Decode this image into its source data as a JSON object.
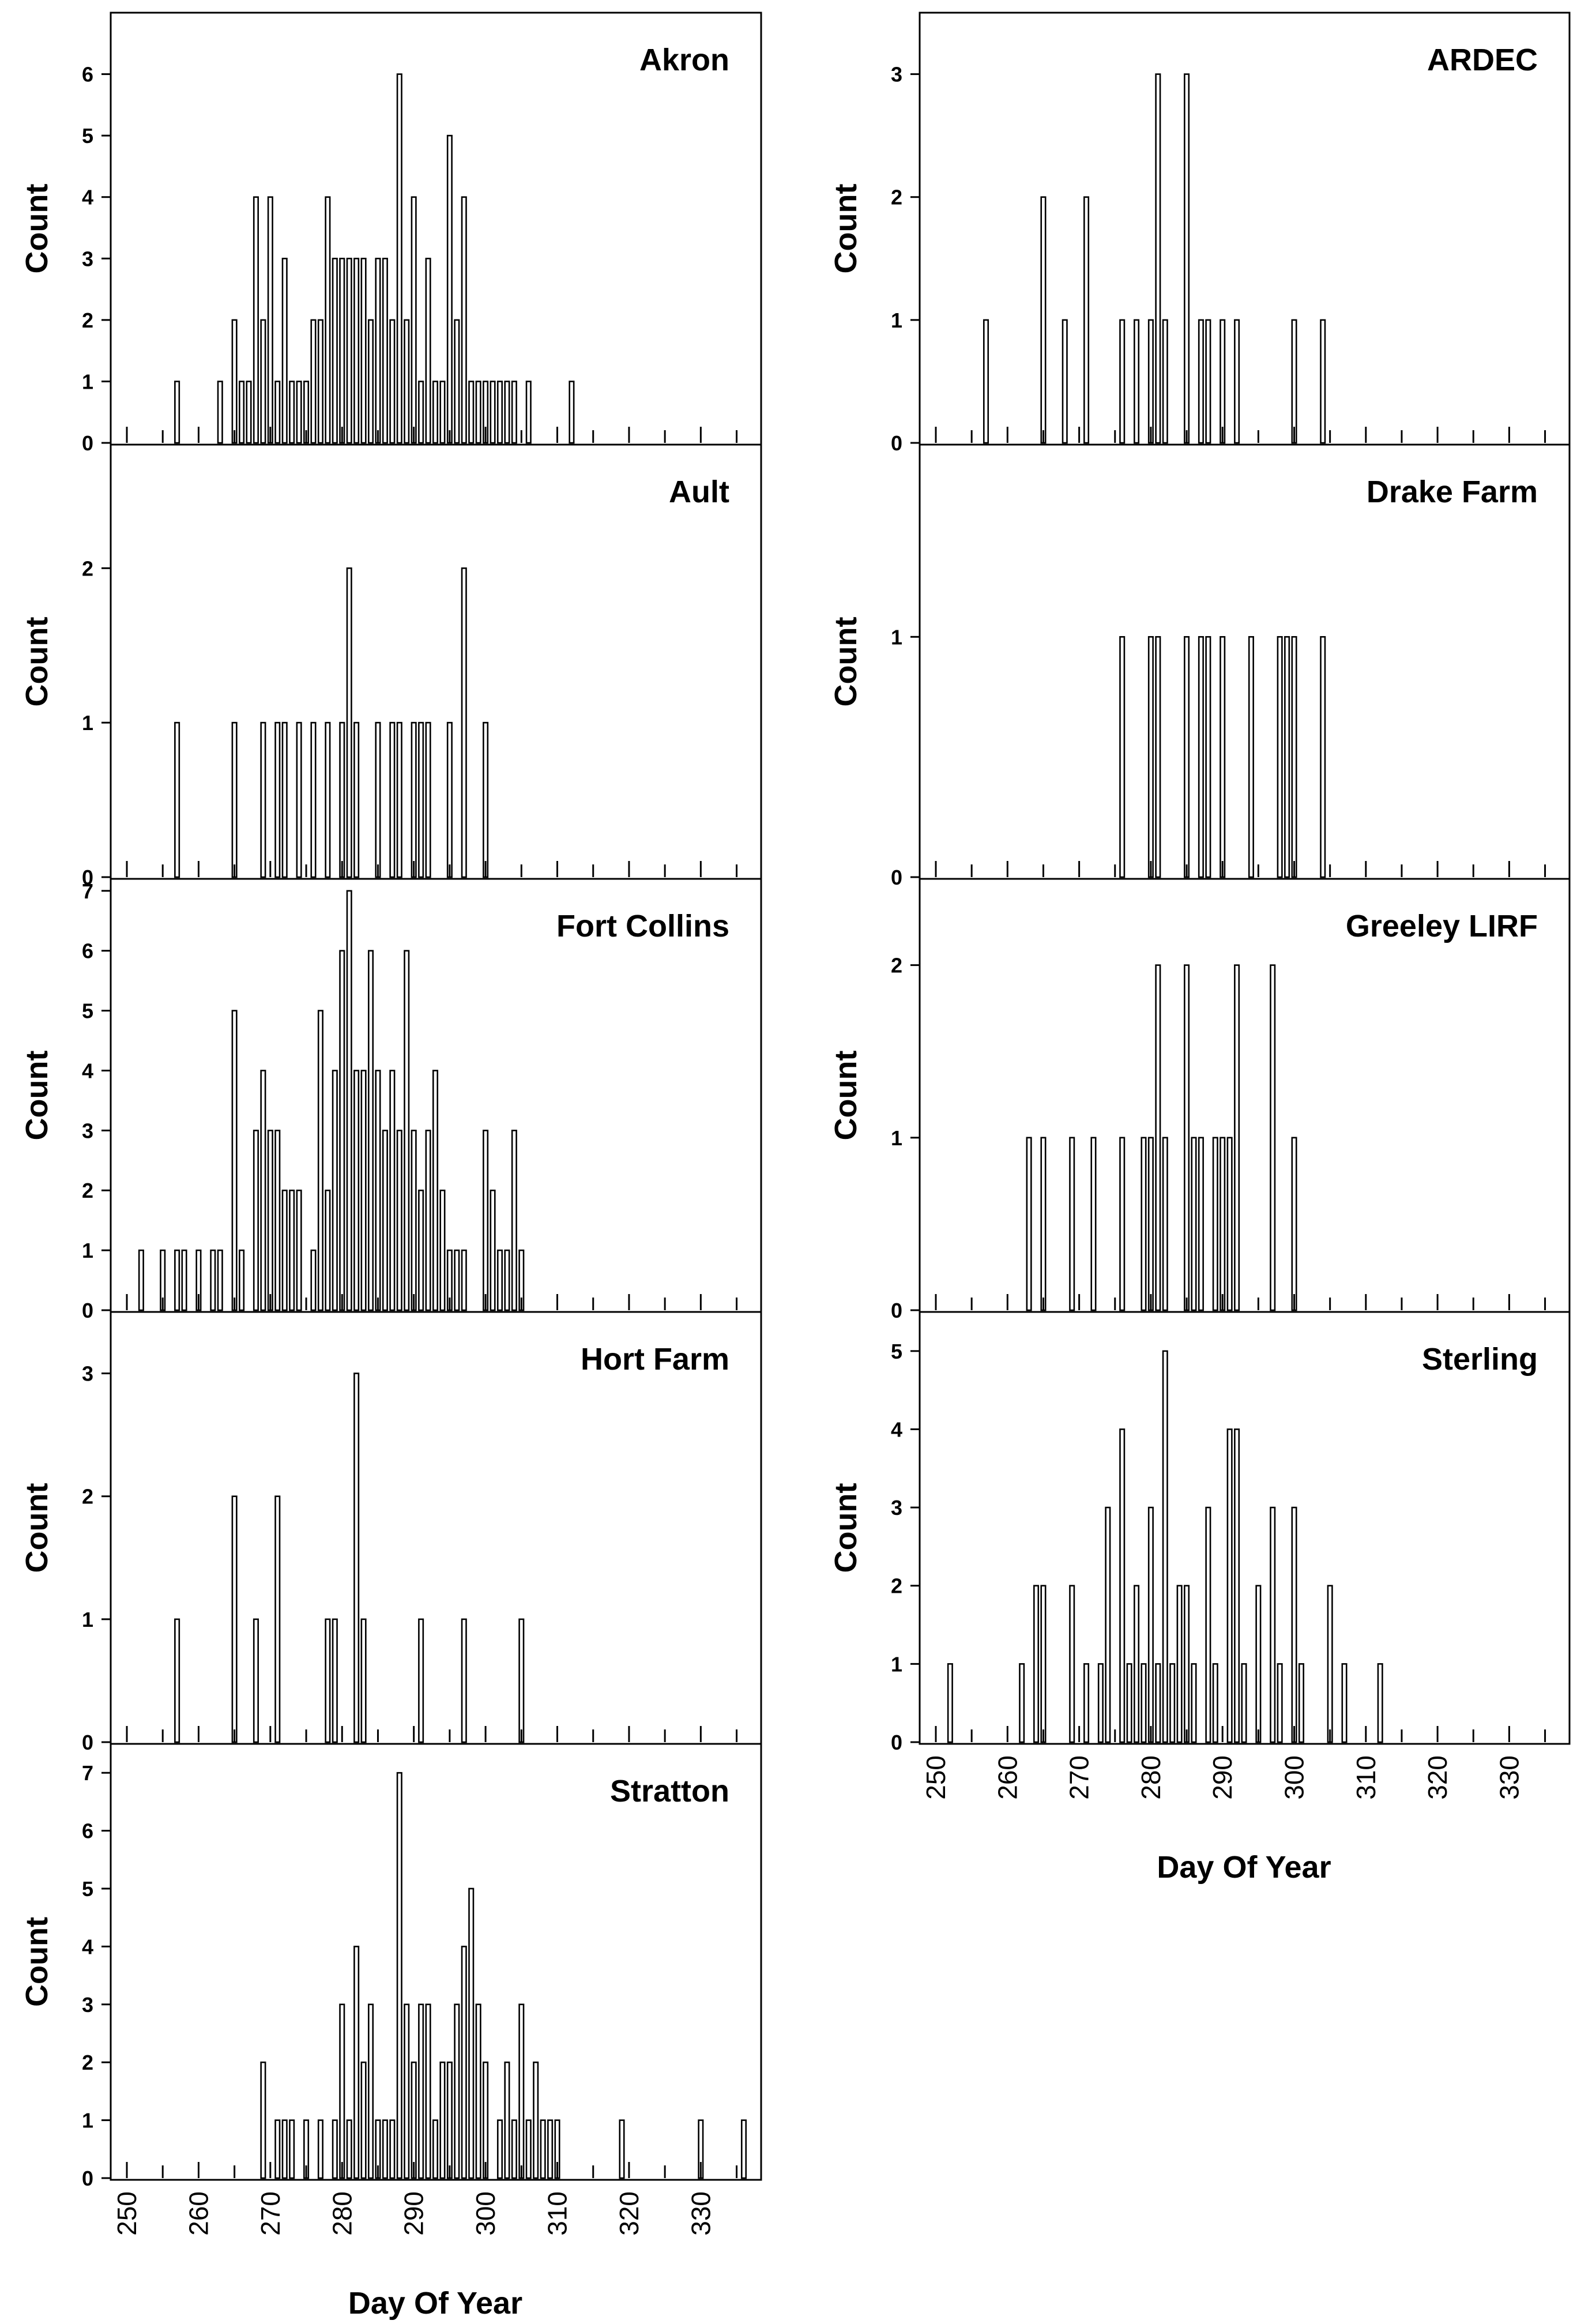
{
  "chart_data": [
    {
      "type": "bar",
      "title": "Akron",
      "ylabel": "Count",
      "xlabel": "",
      "xlim": [
        250,
        336
      ],
      "ylim": [
        0,
        7
      ],
      "yticks": [
        0,
        1,
        2,
        3,
        4,
        5,
        6
      ],
      "x": [
        257,
        263,
        265,
        266,
        267,
        268,
        269,
        270,
        271,
        272,
        273,
        274,
        275,
        276,
        277,
        278,
        279,
        280,
        281,
        282,
        283,
        284,
        285,
        286,
        287,
        288,
        289,
        290,
        291,
        292,
        293,
        294,
        295,
        296,
        297,
        298,
        299,
        300,
        301,
        302,
        303,
        304,
        306,
        312
      ],
      "values": [
        1,
        1,
        2,
        1,
        1,
        4,
        2,
        4,
        1,
        3,
        1,
        1,
        1,
        2,
        2,
        4,
        3,
        3,
        3,
        3,
        3,
        2,
        3,
        3,
        2,
        6,
        2,
        4,
        1,
        3,
        1,
        1,
        5,
        2,
        4,
        1,
        1,
        1,
        1,
        1,
        1,
        1,
        1,
        1
      ]
    },
    {
      "type": "bar",
      "title": "ARDEC",
      "ylabel": "Count",
      "xlabel": "",
      "xlim": [
        250,
        336
      ],
      "ylim": [
        0,
        3.5
      ],
      "yticks": [
        0,
        1,
        2,
        3
      ],
      "x": [
        257,
        265,
        268,
        271,
        276,
        278,
        280,
        281,
        282,
        285,
        287,
        288,
        290,
        292,
        300,
        304
      ],
      "values": [
        1,
        2,
        1,
        2,
        1,
        1,
        1,
        3,
        1,
        3,
        1,
        1,
        1,
        1,
        1,
        1
      ]
    },
    {
      "type": "bar",
      "title": "Ault",
      "ylabel": "Count",
      "xlabel": "",
      "xlim": [
        250,
        336
      ],
      "ylim": [
        0,
        2.8
      ],
      "yticks": [
        0,
        1,
        2
      ],
      "x": [
        257,
        265,
        269,
        271,
        272,
        274,
        276,
        278,
        280,
        281,
        282,
        285,
        287,
        288,
        290,
        291,
        292,
        295,
        297,
        300
      ],
      "values": [
        1,
        1,
        1,
        1,
        1,
        1,
        1,
        1,
        1,
        2,
        1,
        1,
        1,
        1,
        1,
        1,
        1,
        1,
        2,
        1
      ]
    },
    {
      "type": "bar",
      "title": "Drake Farm",
      "ylabel": "Count",
      "xlabel": "",
      "xlim": [
        250,
        336
      ],
      "ylim": [
        0,
        1.8
      ],
      "yticks": [
        0,
        1
      ],
      "x": [
        276,
        280,
        281,
        285,
        287,
        288,
        290,
        294,
        298,
        299,
        300,
        304
      ],
      "values": [
        1,
        1,
        1,
        1,
        1,
        1,
        1,
        1,
        1,
        1,
        1,
        1
      ]
    },
    {
      "type": "bar",
      "title": "Fort Collins",
      "ylabel": "Count",
      "xlabel": "",
      "xlim": [
        250,
        336
      ],
      "ylim": [
        0,
        7.2
      ],
      "yticks": [
        0,
        1,
        2,
        3,
        4,
        5,
        6,
        7
      ],
      "x": [
        252,
        255,
        257,
        258,
        260,
        262,
        263,
        265,
        266,
        268,
        269,
        270,
        271,
        272,
        273,
        274,
        276,
        277,
        278,
        279,
        280,
        281,
        282,
        283,
        284,
        285,
        286,
        287,
        288,
        289,
        290,
        291,
        292,
        293,
        294,
        295,
        296,
        297,
        300,
        301,
        302,
        303,
        304,
        305
      ],
      "values": [
        1,
        1,
        1,
        1,
        1,
        1,
        1,
        5,
        1,
        3,
        4,
        3,
        3,
        2,
        2,
        2,
        1,
        5,
        2,
        4,
        6,
        7,
        4,
        4,
        6,
        4,
        3,
        4,
        3,
        6,
        3,
        2,
        3,
        4,
        2,
        1,
        1,
        1,
        3,
        2,
        1,
        1,
        3,
        1
      ]
    },
    {
      "type": "bar",
      "title": "Greeley LIRF",
      "ylabel": "Count",
      "xlabel": "",
      "xlim": [
        250,
        336
      ],
      "ylim": [
        0,
        2.5
      ],
      "yticks": [
        0,
        1,
        2
      ],
      "x": [
        263,
        265,
        269,
        272,
        276,
        279,
        280,
        281,
        282,
        285,
        286,
        287,
        289,
        290,
        291,
        292,
        297,
        300
      ],
      "values": [
        1,
        1,
        1,
        1,
        1,
        1,
        1,
        2,
        1,
        2,
        1,
        1,
        1,
        1,
        1,
        2,
        2,
        1
      ]
    },
    {
      "type": "bar",
      "title": "Hort Farm",
      "ylabel": "Count",
      "xlabel": "",
      "xlim": [
        250,
        336
      ],
      "ylim": [
        0,
        3.5
      ],
      "yticks": [
        0,
        1,
        2,
        3
      ],
      "x": [
        257,
        265,
        268,
        271,
        278,
        279,
        282,
        283,
        291,
        297,
        305
      ],
      "values": [
        1,
        2,
        1,
        2,
        1,
        1,
        3,
        1,
        1,
        1,
        1
      ]
    },
    {
      "type": "bar",
      "title": "Sterling",
      "ylabel": "Count",
      "xlabel": "Day Of Year",
      "xlim": [
        250,
        336
      ],
      "ylim": [
        0,
        5.5
      ],
      "yticks": [
        0,
        1,
        2,
        3,
        4,
        5
      ],
      "xticks": [
        250,
        260,
        270,
        280,
        290,
        300,
        310,
        320,
        330
      ],
      "x": [
        252,
        262,
        264,
        265,
        269,
        271,
        273,
        274,
        276,
        277,
        278,
        279,
        280,
        281,
        282,
        283,
        284,
        285,
        286,
        288,
        289,
        291,
        292,
        293,
        295,
        297,
        298,
        300,
        301,
        305,
        307,
        312
      ],
      "values": [
        1,
        1,
        2,
        2,
        2,
        1,
        1,
        3,
        4,
        1,
        2,
        1,
        3,
        1,
        5,
        1,
        2,
        2,
        1,
        3,
        1,
        4,
        4,
        1,
        2,
        3,
        1,
        3,
        1,
        2,
        1,
        1
      ]
    },
    {
      "type": "bar",
      "title": "Stratton",
      "ylabel": "Count",
      "xlabel": "Day Of Year",
      "xlim": [
        250,
        336
      ],
      "ylim": [
        0,
        7.5
      ],
      "yticks": [
        0,
        1,
        2,
        3,
        4,
        5,
        6,
        7
      ],
      "xticks": [
        250,
        260,
        270,
        280,
        290,
        300,
        310,
        320,
        330
      ],
      "x": [
        269,
        271,
        272,
        273,
        275,
        277,
        279,
        280,
        281,
        282,
        283,
        284,
        285,
        286,
        287,
        288,
        289,
        290,
        291,
        292,
        293,
        294,
        295,
        296,
        297,
        298,
        299,
        300,
        302,
        303,
        304,
        305,
        306,
        307,
        308,
        309,
        310,
        319,
        330,
        336
      ],
      "values": [
        2,
        1,
        1,
        1,
        1,
        1,
        1,
        3,
        1,
        4,
        2,
        3,
        1,
        1,
        1,
        7,
        3,
        2,
        3,
        3,
        1,
        2,
        2,
        3,
        4,
        5,
        3,
        2,
        1,
        2,
        1,
        3,
        1,
        2,
        1,
        1,
        1,
        1,
        1,
        1
      ]
    }
  ]
}
